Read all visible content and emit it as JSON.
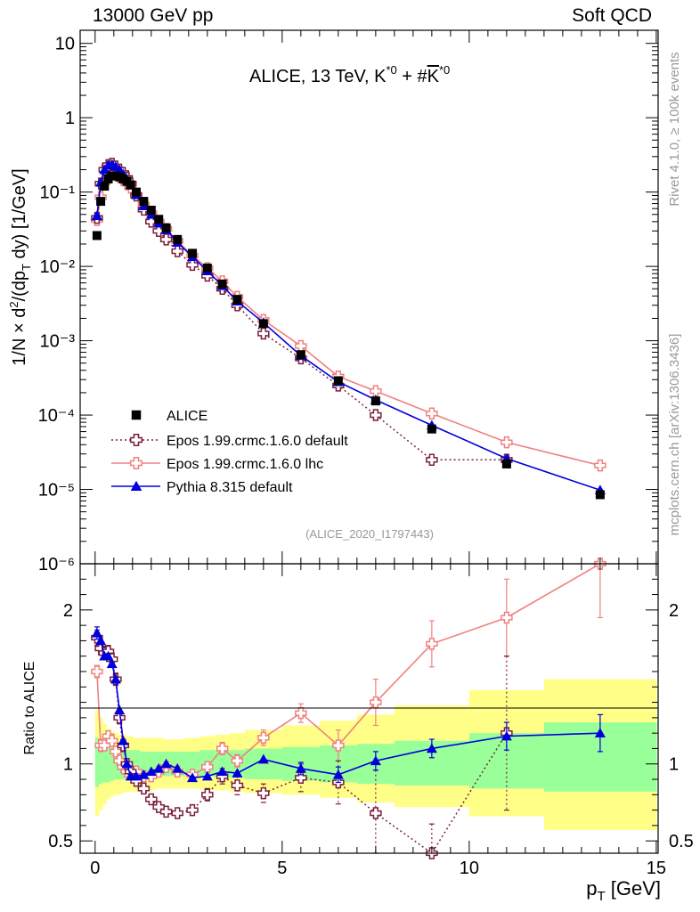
{
  "header": {
    "left": "13000 GeV pp",
    "right": "Soft QCD"
  },
  "side_labels": {
    "rivet": "Rivet 4.1.0, ≥ 100k events",
    "mcplots": "mcplots.cern.ch [arXiv:1306.3436]"
  },
  "plot_title": "ALICE, 13 TeV, K*0 + #K*0",
  "analysis_id": "(ALICE_2020_I1797443)",
  "colors": {
    "data": "#000000",
    "epos_default": "#7a1f3d",
    "epos_lhc": "#f08080",
    "pythia": "#0000dd",
    "band_inner": "#99ff99",
    "band_outer": "#ffff88"
  },
  "chart_data": [
    {
      "type": "scatter",
      "panel": "main",
      "ylabel": "1/N × d²/(dp_T dy) [1/GeV]",
      "yscale": "log",
      "ylim": [
        1e-06,
        15
      ],
      "xlim": [
        -0.4,
        15.05
      ],
      "y_tick_labels": [
        "10",
        "1",
        "10⁻¹",
        "10⁻²",
        "10⁻³",
        "10⁻⁴",
        "10⁻⁵",
        "10⁻⁶"
      ],
      "legend": [
        "ALICE",
        "Epos 1.99.crmc.1.6.0 default",
        "Epos 1.99.crmc.1.6.0 lhc",
        "Pythia 8.315 default"
      ],
      "series": [
        {
          "name": "ALICE",
          "marker": "square",
          "x": [
            0.05,
            0.15,
            0.25,
            0.35,
            0.45,
            0.55,
            0.65,
            0.75,
            0.85,
            0.95,
            1.1,
            1.3,
            1.5,
            1.7,
            1.9,
            2.2,
            2.6,
            3.0,
            3.4,
            3.8,
            4.5,
            5.5,
            6.5,
            7.5,
            9,
            11,
            13.5
          ],
          "y": [
            0.026,
            0.075,
            0.12,
            0.15,
            0.165,
            0.165,
            0.16,
            0.15,
            0.14,
            0.125,
            0.1,
            0.075,
            0.057,
            0.043,
            0.033,
            0.023,
            0.015,
            0.0095,
            0.0058,
            0.0036,
            0.0017,
            0.00065,
            0.00029,
            0.000155,
            6.5e-05,
            2.2e-05,
            8.5e-06
          ]
        },
        {
          "name": "Epos 1.99.crmc.1.6.0 default",
          "marker": "open-cross",
          "x": [
            0.05,
            0.15,
            0.25,
            0.35,
            0.45,
            0.55,
            0.65,
            0.75,
            0.85,
            0.95,
            1.1,
            1.3,
            1.5,
            1.7,
            1.9,
            2.2,
            2.6,
            3.0,
            3.4,
            3.8,
            4.5,
            5.5,
            6.5,
            7.5,
            9,
            11
          ],
          "y": [
            0.045,
            0.13,
            0.2,
            0.23,
            0.24,
            0.22,
            0.2,
            0.18,
            0.155,
            0.13,
            0.09,
            0.058,
            0.04,
            0.03,
            0.023,
            0.016,
            0.0105,
            0.0075,
            0.005,
            0.003,
            0.00125,
            0.00058,
            0.00025,
            0.0001,
            2.5e-05,
            2.5e-05
          ]
        },
        {
          "name": "Epos 1.99.crmc.1.6.0 lhc",
          "marker": "open-cross",
          "x": [
            0.05,
            0.15,
            0.25,
            0.35,
            0.45,
            0.55,
            0.65,
            0.75,
            0.85,
            0.95,
            1.1,
            1.3,
            1.5,
            1.7,
            1.9,
            2.2,
            2.6,
            3.0,
            3.4,
            3.8,
            4.5,
            5.5,
            6.5,
            7.5,
            9,
            11,
            13.5
          ],
          "y": [
            0.042,
            0.085,
            0.135,
            0.165,
            0.18,
            0.17,
            0.16,
            0.145,
            0.13,
            0.115,
            0.092,
            0.068,
            0.052,
            0.04,
            0.032,
            0.022,
            0.014,
            0.0095,
            0.0063,
            0.0039,
            0.0019,
            0.00085,
            0.00033,
            0.00021,
            0.000105,
            4.3e-05,
            2.1e-05
          ]
        },
        {
          "name": "Pythia 8.315 default",
          "marker": "triangle",
          "x": [
            0.05,
            0.15,
            0.25,
            0.35,
            0.45,
            0.55,
            0.65,
            0.75,
            0.85,
            0.95,
            1.1,
            1.3,
            1.5,
            1.7,
            1.9,
            2.2,
            2.6,
            3.0,
            3.4,
            3.8,
            4.5,
            5.5,
            6.5,
            7.5,
            9,
            11,
            13.5
          ],
          "y": [
            0.048,
            0.135,
            0.2,
            0.23,
            0.235,
            0.22,
            0.2,
            0.175,
            0.15,
            0.125,
            0.092,
            0.065,
            0.05,
            0.038,
            0.031,
            0.021,
            0.0135,
            0.0087,
            0.0055,
            0.0034,
            0.00175,
            0.00063,
            0.00028,
            0.00016,
            7.3e-05,
            2.6e-05,
            9.8e-06
          ]
        }
      ]
    },
    {
      "type": "line",
      "panel": "ratio",
      "ylabel": "Ratio to ALICE",
      "xlabel": "p_T [GeV]",
      "ylim": [
        0.42,
        2.3
      ],
      "xlim": [
        -0.4,
        15.05
      ],
      "y_ticks": [
        0.5,
        1,
        2
      ],
      "y_tick_labels": [
        "0.5",
        "1",
        "2"
      ],
      "x_ticks": [
        0,
        5,
        10,
        15
      ],
      "x_tick_labels": [
        "0",
        "5",
        "10",
        "15"
      ],
      "bands": {
        "edges": [
          0,
          0.1,
          0.2,
          0.3,
          0.4,
          0.5,
          0.6,
          0.7,
          0.8,
          0.9,
          1.0,
          1.2,
          1.4,
          1.6,
          1.8,
          2.0,
          2.4,
          2.8,
          3.2,
          3.6,
          4.0,
          5.0,
          6.0,
          7.0,
          8.0,
          10.0,
          12.0,
          15.0
        ],
        "inner_lo": [
          0.85,
          0.87,
          0.88,
          0.88,
          0.89,
          0.9,
          0.9,
          0.9,
          0.91,
          0.91,
          0.91,
          0.92,
          0.92,
          0.92,
          0.92,
          0.92,
          0.92,
          0.92,
          0.91,
          0.91,
          0.9,
          0.89,
          0.88,
          0.87,
          0.86,
          0.84,
          0.82
        ],
        "inner_hi": [
          1.17,
          1.15,
          1.13,
          1.12,
          1.11,
          1.11,
          1.1,
          1.1,
          1.09,
          1.09,
          1.09,
          1.08,
          1.08,
          1.08,
          1.08,
          1.08,
          1.08,
          1.09,
          1.09,
          1.09,
          1.1,
          1.11,
          1.12,
          1.13,
          1.15,
          1.2,
          1.27
        ],
        "outer_lo": [
          0.66,
          0.7,
          0.74,
          0.77,
          0.79,
          0.8,
          0.8,
          0.81,
          0.82,
          0.82,
          0.82,
          0.83,
          0.83,
          0.84,
          0.84,
          0.84,
          0.84,
          0.83,
          0.83,
          0.82,
          0.81,
          0.8,
          0.78,
          0.75,
          0.72,
          0.66,
          0.57
        ],
        "outer_hi": [
          1.35,
          1.3,
          1.26,
          1.23,
          1.21,
          1.2,
          1.19,
          1.19,
          1.18,
          1.18,
          1.17,
          1.17,
          1.17,
          1.17,
          1.16,
          1.16,
          1.17,
          1.18,
          1.19,
          1.2,
          1.22,
          1.25,
          1.28,
          1.32,
          1.38,
          1.48,
          1.55
        ]
      },
      "series": [
        {
          "name": "Epos 1.99.crmc.1.6.0 default",
          "x": [
            0.05,
            0.15,
            0.25,
            0.35,
            0.45,
            0.55,
            0.65,
            0.75,
            0.85,
            0.95,
            1.1,
            1.3,
            1.5,
            1.7,
            1.9,
            2.2,
            2.6,
            3.0,
            3.4,
            3.8,
            4.5,
            5.5,
            6.5,
            7.5,
            9,
            11
          ],
          "y": [
            1.82,
            1.75,
            1.72,
            1.73,
            1.68,
            1.55,
            1.3,
            1.12,
            1.0,
            0.95,
            0.89,
            0.84,
            0.77,
            0.72,
            0.69,
            0.68,
            0.7,
            0.8,
            0.92,
            0.86,
            0.81,
            0.91,
            0.88,
            0.68,
            0.35,
            1.2
          ],
          "err": [
            0.05,
            0.04,
            0.04,
            0.04,
            0.04,
            0.04,
            0.04,
            0.04,
            0.03,
            0.03,
            0.03,
            0.03,
            0.02,
            0.02,
            0.02,
            0.02,
            0.03,
            0.04,
            0.05,
            0.06,
            0.06,
            0.09,
            0.14,
            0.28,
            0.26,
            0.5
          ]
        },
        {
          "name": "Epos 1.99.crmc.1.6.0 lhc",
          "x": [
            0.05,
            0.15,
            0.25,
            0.35,
            0.45,
            0.55,
            0.65,
            0.75,
            0.85,
            0.95,
            1.1,
            1.3,
            1.5,
            1.7,
            1.9,
            2.2,
            2.6,
            3.0,
            3.4,
            3.8,
            4.5,
            5.5,
            6.5,
            7.5,
            9,
            11,
            13.5
          ],
          "y": [
            1.6,
            1.12,
            1.12,
            1.18,
            1.15,
            1.08,
            1.02,
            0.98,
            0.95,
            0.95,
            0.95,
            0.92,
            0.92,
            0.95,
            0.98,
            0.95,
            0.93,
            0.98,
            1.1,
            1.02,
            1.17,
            1.33,
            1.12,
            1.4,
            1.78,
            1.95,
            2.4
          ],
          "err": [
            0.04,
            0.04,
            0.03,
            0.03,
            0.03,
            0.03,
            0.03,
            0.03,
            0.02,
            0.02,
            0.02,
            0.02,
            0.02,
            0.02,
            0.02,
            0.02,
            0.02,
            0.03,
            0.04,
            0.04,
            0.05,
            0.06,
            0.1,
            0.15,
            0.15,
            0.25,
            0.45
          ]
        },
        {
          "name": "Pythia 8.315 default",
          "x": [
            0.05,
            0.15,
            0.25,
            0.35,
            0.45,
            0.55,
            0.65,
            0.75,
            0.85,
            0.95,
            1.1,
            1.3,
            1.5,
            1.7,
            1.9,
            2.2,
            2.6,
            3.0,
            3.4,
            3.8,
            4.5,
            5.5,
            6.5,
            7.5,
            9,
            11,
            13.5
          ],
          "y": [
            1.85,
            1.8,
            1.7,
            1.7,
            1.65,
            1.55,
            1.35,
            1.15,
            1.0,
            0.92,
            0.92,
            0.93,
            0.95,
            0.97,
            1.0,
            0.97,
            0.91,
            0.92,
            0.95,
            0.94,
            1.03,
            0.97,
            0.93,
            1.02,
            1.1,
            1.18,
            1.2
          ],
          "err": [
            0.04,
            0.03,
            0.03,
            0.03,
            0.03,
            0.03,
            0.03,
            0.02,
            0.02,
            0.02,
            0.02,
            0.02,
            0.02,
            0.02,
            0.02,
            0.02,
            0.02,
            0.02,
            0.03,
            0.03,
            0.03,
            0.04,
            0.05,
            0.06,
            0.06,
            0.09,
            0.12
          ]
        }
      ]
    }
  ]
}
